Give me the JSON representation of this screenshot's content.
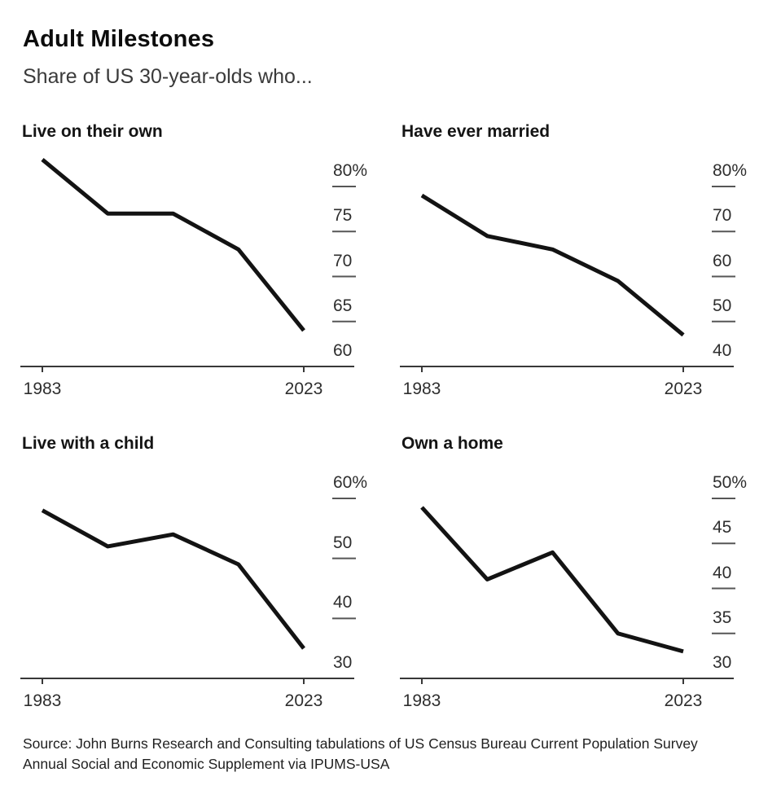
{
  "header": {
    "title": "Adult Milestones",
    "subtitle": "Share of US 30-year-olds who..."
  },
  "chart_data": [
    {
      "type": "line",
      "title": "Live on their own",
      "x": [
        1983,
        1993,
        2003,
        2013,
        2023
      ],
      "values": [
        83,
        77,
        77,
        73,
        64
      ],
      "y_ticks": [
        80,
        75,
        70,
        65,
        60
      ],
      "y_tick_labels": [
        "80%",
        "75",
        "70",
        "65",
        "60"
      ],
      "x_ticks": [
        {
          "year": 1983,
          "label": "1983"
        },
        {
          "year": 2023,
          "label": "2023"
        }
      ],
      "ylim": [
        60,
        84
      ],
      "unit": "%",
      "grid": "off",
      "legend": "none"
    },
    {
      "type": "line",
      "title": "Have ever married",
      "x": [
        1983,
        1993,
        2003,
        2013,
        2023
      ],
      "values": [
        78,
        69,
        66,
        59,
        47
      ],
      "y_ticks": [
        80,
        70,
        60,
        50,
        40
      ],
      "y_tick_labels": [
        "80%",
        "70",
        "60",
        "50",
        "40"
      ],
      "x_ticks": [
        {
          "year": 1983,
          "label": "1983"
        },
        {
          "year": 2023,
          "label": "2023"
        }
      ],
      "ylim": [
        40,
        84
      ],
      "unit": "%",
      "grid": "off",
      "legend": "none"
    },
    {
      "type": "line",
      "title": "Live with a child",
      "x": [
        1983,
        1993,
        2003,
        2013,
        2023
      ],
      "values": [
        58,
        52,
        54,
        49,
        35
      ],
      "y_ticks": [
        60,
        50,
        40,
        30
      ],
      "y_tick_labels": [
        "60%",
        "50",
        "40",
        "30"
      ],
      "x_ticks": [
        {
          "year": 1983,
          "label": "1983"
        },
        {
          "year": 2023,
          "label": "2023"
        }
      ],
      "ylim": [
        30,
        63
      ],
      "unit": "%",
      "grid": "off",
      "legend": "none"
    },
    {
      "type": "line",
      "title": "Own a home",
      "x": [
        1983,
        1993,
        2003,
        2013,
        2023
      ],
      "values": [
        49,
        41,
        44,
        35,
        33
      ],
      "y_ticks": [
        50,
        45,
        40,
        35,
        30
      ],
      "y_tick_labels": [
        "50%",
        "45",
        "40",
        "35",
        "30"
      ],
      "x_ticks": [
        {
          "year": 1983,
          "label": "1983"
        },
        {
          "year": 2023,
          "label": "2023"
        }
      ],
      "ylim": [
        30,
        51
      ],
      "unit": "%",
      "grid": "off",
      "legend": "none"
    }
  ],
  "source": {
    "lines": [
      "Source: John Burns Research and Consulting tabulations of US Census Bureau Current Population Survey",
      "Annual Social and Economic Supplement via IPUMS-USA"
    ]
  },
  "colors": {
    "background": "#ffffff",
    "line": "#131313",
    "axis": "#383838",
    "tick_dash": "#565656",
    "axis_label": "#2e2e2e",
    "title": "#0c0c0c",
    "subtitle": "#3a3a3a",
    "source_text": "#1f1f1f"
  }
}
